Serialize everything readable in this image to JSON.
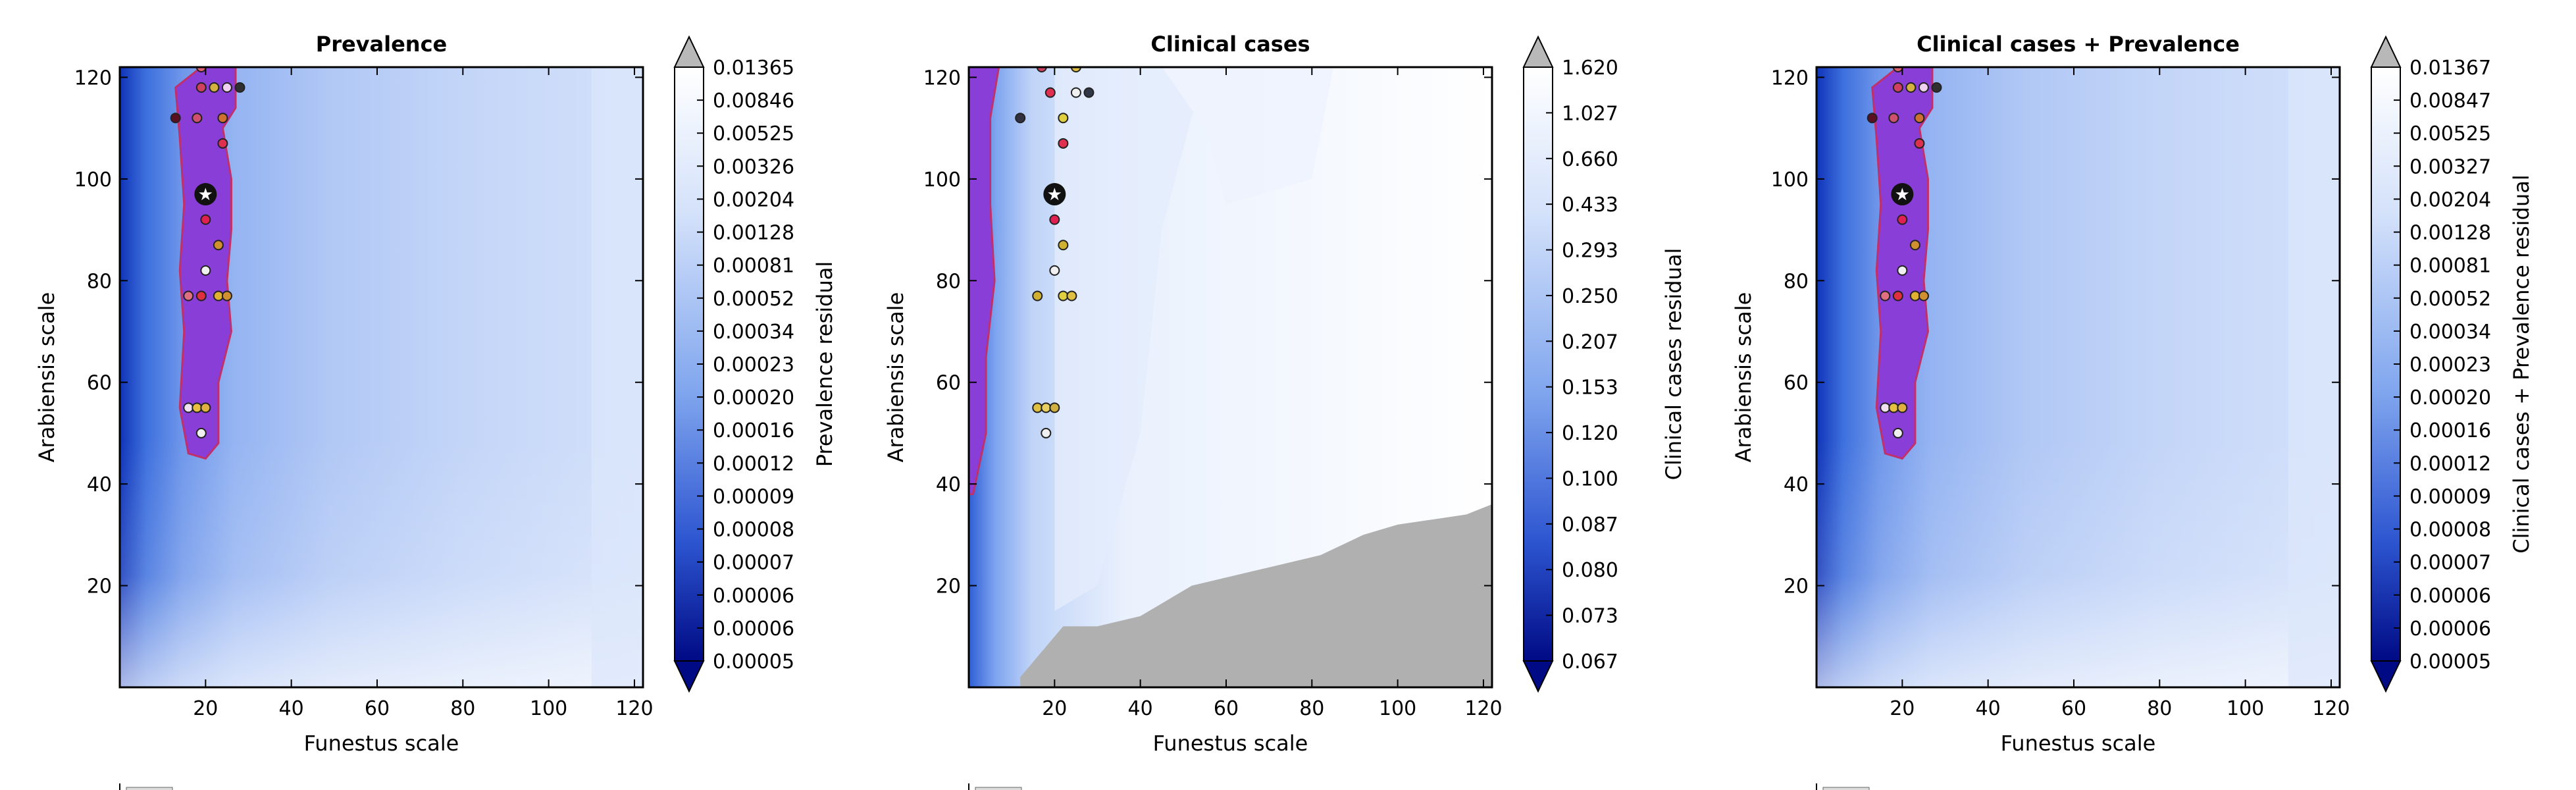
{
  "chart_data": [
    {
      "type": "contour",
      "title": "Prevalence",
      "xlabel": "Funestus scale",
      "ylabel": "Arabiensis scale",
      "xlim": [
        0,
        122
      ],
      "ylim": [
        0,
        122
      ],
      "xticks": [
        "20",
        "40",
        "60",
        "80",
        "100",
        "120"
      ],
      "yticks": [
        "20",
        "40",
        "60",
        "80",
        "100",
        "120"
      ],
      "colorbar": {
        "label": "Prevalence residual",
        "ticks": [
          "0.01365",
          "0.00846",
          "0.00525",
          "0.00326",
          "0.00204",
          "0.00128",
          "0.00081",
          "0.00052",
          "0.00034",
          "0.00023",
          "0.00020",
          "0.00016",
          "0.00012",
          "0.00009",
          "0.00008",
          "0.00007",
          "0.00006",
          "0.00006",
          "0.00005"
        ],
        "extend": "both"
      },
      "region_of_best_fit": "top 5 percentile (purple)",
      "best_point": [
        20,
        97
      ],
      "points": [
        {
          "x": 13,
          "y": 112,
          "color": "#5a1020"
        },
        {
          "x": 19,
          "y": 122,
          "color": "#e06070"
        },
        {
          "x": 19,
          "y": 118,
          "color": "#d04060"
        },
        {
          "x": 22,
          "y": 118,
          "color": "#d4b040"
        },
        {
          "x": 25,
          "y": 118,
          "color": "#f0d0f0"
        },
        {
          "x": 28,
          "y": 118,
          "color": "#303030"
        },
        {
          "x": 18,
          "y": 112,
          "color": "#d05070"
        },
        {
          "x": 24,
          "y": 112,
          "color": "#d07030"
        },
        {
          "x": 24,
          "y": 107,
          "color": "#e03050"
        },
        {
          "x": 20,
          "y": 92,
          "color": "#e02050"
        },
        {
          "x": 23,
          "y": 87,
          "color": "#d09030"
        },
        {
          "x": 20,
          "y": 82,
          "color": "#f0f0f0"
        },
        {
          "x": 16,
          "y": 77,
          "color": "#e07080"
        },
        {
          "x": 19,
          "y": 77,
          "color": "#e03040"
        },
        {
          "x": 23,
          "y": 77,
          "color": "#e0b030"
        },
        {
          "x": 25,
          "y": 77,
          "color": "#d09030"
        },
        {
          "x": 16,
          "y": 55,
          "color": "#f0e0f0"
        },
        {
          "x": 18,
          "y": 55,
          "color": "#e8c040"
        },
        {
          "x": 20,
          "y": 55,
          "color": "#e0b040"
        },
        {
          "x": 19,
          "y": 50,
          "color": "#f0f0f0"
        }
      ]
    },
    {
      "type": "contour",
      "title": "Clinical cases",
      "xlabel": "Funestus scale",
      "ylabel": "Arabiensis scale",
      "xlim": [
        0,
        122
      ],
      "ylim": [
        0,
        122
      ],
      "xticks": [
        "20",
        "40",
        "60",
        "80",
        "100",
        "120"
      ],
      "yticks": [
        "20",
        "40",
        "60",
        "80",
        "100",
        "120"
      ],
      "colorbar": {
        "label": "Clinical cases residual",
        "ticks": [
          "1.620",
          "1.027",
          "0.660",
          "0.433",
          "0.293",
          "0.250",
          "0.207",
          "0.153",
          "0.120",
          "0.100",
          "0.087",
          "0.080",
          "0.073",
          "0.067"
        ],
        "extend": "both"
      },
      "region_of_best_fit": "top 5 percentile (purple)",
      "best_point": [
        20,
        97
      ],
      "points": [
        {
          "x": 17,
          "y": 122,
          "color": "#d04060"
        },
        {
          "x": 25,
          "y": 122,
          "color": "#e0c040"
        },
        {
          "x": 12,
          "y": 112,
          "color": "#303040"
        },
        {
          "x": 19,
          "y": 117,
          "color": "#e03050"
        },
        {
          "x": 25,
          "y": 117,
          "color": "#f0f0f0"
        },
        {
          "x": 28,
          "y": 117,
          "color": "#303848"
        },
        {
          "x": 22,
          "y": 112,
          "color": "#e0d040"
        },
        {
          "x": 22,
          "y": 107,
          "color": "#e03050"
        },
        {
          "x": 20,
          "y": 92,
          "color": "#e02050"
        },
        {
          "x": 22,
          "y": 87,
          "color": "#d0b030"
        },
        {
          "x": 20,
          "y": 82,
          "color": "#f0f0f0"
        },
        {
          "x": 16,
          "y": 77,
          "color": "#d0b030"
        },
        {
          "x": 22,
          "y": 77,
          "color": "#e0d040"
        },
        {
          "x": 24,
          "y": 77,
          "color": "#e0c040"
        },
        {
          "x": 16,
          "y": 55,
          "color": "#e0c040"
        },
        {
          "x": 18,
          "y": 55,
          "color": "#e8d060"
        },
        {
          "x": 20,
          "y": 55,
          "color": "#d0b040"
        },
        {
          "x": 18,
          "y": 50,
          "color": "#f0f0f0"
        }
      ]
    },
    {
      "type": "contour",
      "title": "Clinical cases + Prevalence",
      "xlabel": "Funestus scale",
      "ylabel": "Arabiensis scale",
      "xlim": [
        0,
        122
      ],
      "ylim": [
        0,
        122
      ],
      "xticks": [
        "20",
        "40",
        "60",
        "80",
        "100",
        "120"
      ],
      "yticks": [
        "20",
        "40",
        "60",
        "80",
        "100",
        "120"
      ],
      "colorbar": {
        "label": "Clinical cases + Prevalence residual",
        "ticks": [
          "0.01367",
          "0.00847",
          "0.00525",
          "0.00327",
          "0.00204",
          "0.00128",
          "0.00081",
          "0.00052",
          "0.00034",
          "0.00023",
          "0.00020",
          "0.00016",
          "0.00012",
          "0.00009",
          "0.00008",
          "0.00007",
          "0.00006",
          "0.00006",
          "0.00005"
        ],
        "extend": "both"
      },
      "region_of_best_fit": "top 5 percentile (purple)",
      "best_point": [
        20,
        97
      ],
      "points": [
        {
          "x": 13,
          "y": 112,
          "color": "#5a1020"
        },
        {
          "x": 19,
          "y": 122,
          "color": "#e06070"
        },
        {
          "x": 19,
          "y": 118,
          "color": "#d04060"
        },
        {
          "x": 22,
          "y": 118,
          "color": "#d4b040"
        },
        {
          "x": 25,
          "y": 118,
          "color": "#f0d0f0"
        },
        {
          "x": 28,
          "y": 118,
          "color": "#303030"
        },
        {
          "x": 18,
          "y": 112,
          "color": "#d05070"
        },
        {
          "x": 24,
          "y": 112,
          "color": "#d07030"
        },
        {
          "x": 24,
          "y": 107,
          "color": "#e03050"
        },
        {
          "x": 20,
          "y": 92,
          "color": "#e02050"
        },
        {
          "x": 23,
          "y": 87,
          "color": "#d09030"
        },
        {
          "x": 20,
          "y": 82,
          "color": "#f0f0f0"
        },
        {
          "x": 16,
          "y": 77,
          "color": "#e07080"
        },
        {
          "x": 19,
          "y": 77,
          "color": "#e03040"
        },
        {
          "x": 23,
          "y": 77,
          "color": "#e0b030"
        },
        {
          "x": 25,
          "y": 77,
          "color": "#d09030"
        },
        {
          "x": 16,
          "y": 55,
          "color": "#f0e0f0"
        },
        {
          "x": 18,
          "y": 55,
          "color": "#e8c040"
        },
        {
          "x": 20,
          "y": 55,
          "color": "#e0b040"
        },
        {
          "x": 19,
          "y": 50,
          "color": "#f0f0f0"
        }
      ]
    }
  ]
}
